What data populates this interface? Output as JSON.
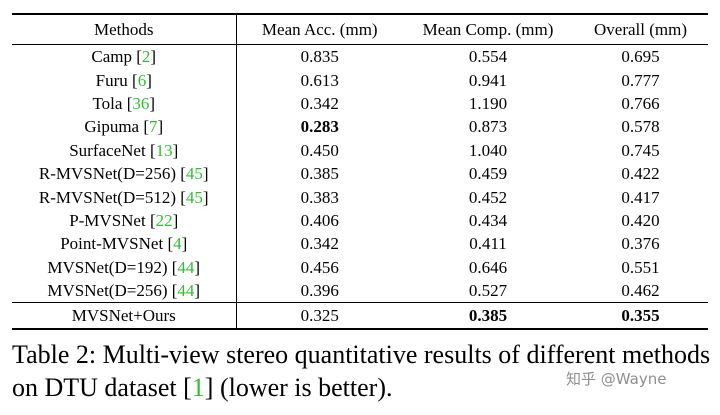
{
  "table": {
    "headers": [
      "Methods",
      "Mean Acc. (mm)",
      "Mean Comp. (mm)",
      "Overall (mm)"
    ],
    "rows": [
      {
        "method": "Camp",
        "ref": "2",
        "acc": "0.835",
        "comp": "0.554",
        "overall": "0.695"
      },
      {
        "method": "Furu",
        "ref": "6",
        "acc": "0.613",
        "comp": "0.941",
        "overall": "0.777"
      },
      {
        "method": "Tola",
        "ref": "36",
        "acc": "0.342",
        "comp": "1.190",
        "overall": "0.766"
      },
      {
        "method": "Gipuma",
        "ref": "7",
        "acc": "0.283",
        "comp": "0.873",
        "overall": "0.578"
      },
      {
        "method": "SurfaceNet",
        "ref": "13",
        "acc": "0.450",
        "comp": "1.040",
        "overall": "0.745"
      },
      {
        "method": "R-MVSNet(D=256)",
        "ref": "45",
        "acc": "0.385",
        "comp": "0.459",
        "overall": "0.422"
      },
      {
        "method": "R-MVSNet(D=512)",
        "ref": "45",
        "acc": "0.383",
        "comp": "0.452",
        "overall": "0.417"
      },
      {
        "method": "P-MVSNet",
        "ref": "22",
        "acc": "0.406",
        "comp": "0.434",
        "overall": "0.420"
      },
      {
        "method": "Point-MVSNet",
        "ref": "4",
        "acc": "0.342",
        "comp": "0.411",
        "overall": "0.376"
      },
      {
        "method": "MVSNet(D=192)",
        "ref": "44",
        "acc": "0.456",
        "comp": "0.646",
        "overall": "0.551"
      },
      {
        "method": "MVSNet(D=256)",
        "ref": "44",
        "acc": "0.396",
        "comp": "0.527",
        "overall": "0.462"
      }
    ],
    "last_row": {
      "method": "MVSNet+Ours",
      "acc": "0.325",
      "comp": "0.385",
      "overall": "0.355"
    }
  },
  "caption": {
    "part1": "Table 2: Multi-view stereo quantitative results of different methods on DTU dataset [",
    "ref": "1",
    "part2": "] (lower is better)."
  },
  "watermark": "知乎 @Wayne",
  "colors": {
    "reference_link": "#2fc02f",
    "watermark": "#8f8f8f"
  }
}
